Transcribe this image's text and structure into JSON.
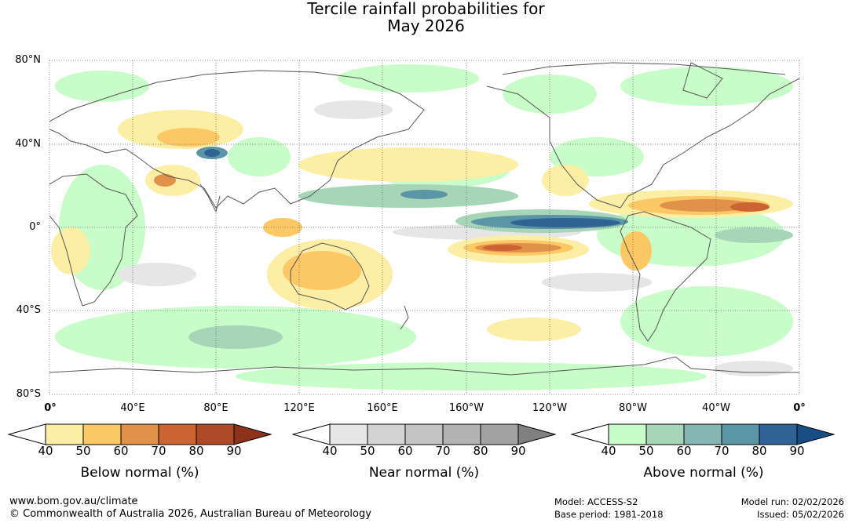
{
  "title": {
    "line1": "Tercile rainfall probabilities for",
    "line2": "May 2026"
  },
  "map": {
    "lat_labels": [
      "80°N",
      "40°N",
      "0°",
      "40°S",
      "80°S"
    ],
    "lon_labels": [
      "0°",
      "40°E",
      "80°E",
      "120°E",
      "160°E",
      "160°W",
      "120°W",
      "80°W",
      "40°W",
      "0°"
    ],
    "ocean_color": "#ffffff",
    "coast_color": "#555555",
    "grid_color": "#666666"
  },
  "legends": [
    {
      "title": "Below normal (%)",
      "ticks": [
        "40",
        "50",
        "60",
        "70",
        "80",
        "90"
      ],
      "colors": [
        "#ffffff",
        "#fdeea6",
        "#fcc865",
        "#e0914a",
        "#cc6332",
        "#ae4a28",
        "#8e3219"
      ]
    },
    {
      "title": "Near normal (%)",
      "ticks": [
        "40",
        "50",
        "60",
        "70",
        "80",
        "90"
      ],
      "colors": [
        "#ffffff",
        "#e6e6e6",
        "#d3d3d3",
        "#c4c4c4",
        "#b3b3b3",
        "#a2a2a2",
        "#808080"
      ]
    },
    {
      "title": "Above normal (%)",
      "ticks": [
        "40",
        "50",
        "60",
        "70",
        "80",
        "90"
      ],
      "colors": [
        "#ffffff",
        "#c8fcc8",
        "#a6d5b8",
        "#86b6b3",
        "#5a96a6",
        "#2f6395",
        "#194e85"
      ]
    }
  ],
  "footer": {
    "website": "www.bom.gov.au/climate",
    "copyright": "© Commonwealth of Australia 2026, Australian Bureau of Meteorology",
    "model": "Model: ACCESS-S2",
    "base_period": "Base period: 1981-2018",
    "model_run": "Model run: 02/02/2026",
    "issued": "Issued: 05/02/2026"
  }
}
